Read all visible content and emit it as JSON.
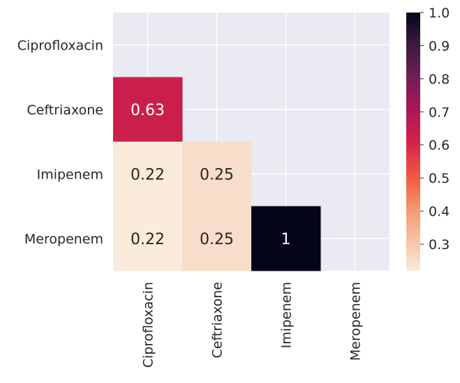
{
  "chart_data": {
    "type": "heatmap",
    "rows": [
      "Ciprofloxacin",
      "Ceftriaxone",
      "Imipenem",
      "Meropenem"
    ],
    "columns": [
      "Ciprofloxacin",
      "Ceftriaxone",
      "Imipenem",
      "Meropenem"
    ],
    "mask": "upper-triangle-including-diagonal",
    "cells": [
      {
        "row": "Ceftriaxone",
        "col": "Ciprofloxacin",
        "value": 0.63,
        "label": "0.63"
      },
      {
        "row": "Imipenem",
        "col": "Ciprofloxacin",
        "value": 0.22,
        "label": "0.22"
      },
      {
        "row": "Imipenem",
        "col": "Ceftriaxone",
        "value": 0.25,
        "label": "0.25"
      },
      {
        "row": "Meropenem",
        "col": "Ciprofloxacin",
        "value": 0.22,
        "label": "0.22"
      },
      {
        "row": "Meropenem",
        "col": "Ceftriaxone",
        "value": 0.25,
        "label": "0.25"
      },
      {
        "row": "Meropenem",
        "col": "Imipenem",
        "value": 1.0,
        "label": "1"
      }
    ],
    "colorbar": {
      "colormap": "rocket_r",
      "range": [
        0.22,
        1.0
      ],
      "ticks": [
        "0.3",
        "0.4",
        "0.5",
        "0.6",
        "0.7",
        "0.8",
        "0.9",
        "1.0"
      ]
    },
    "grid": true,
    "background_color": "#eaeaf2"
  }
}
